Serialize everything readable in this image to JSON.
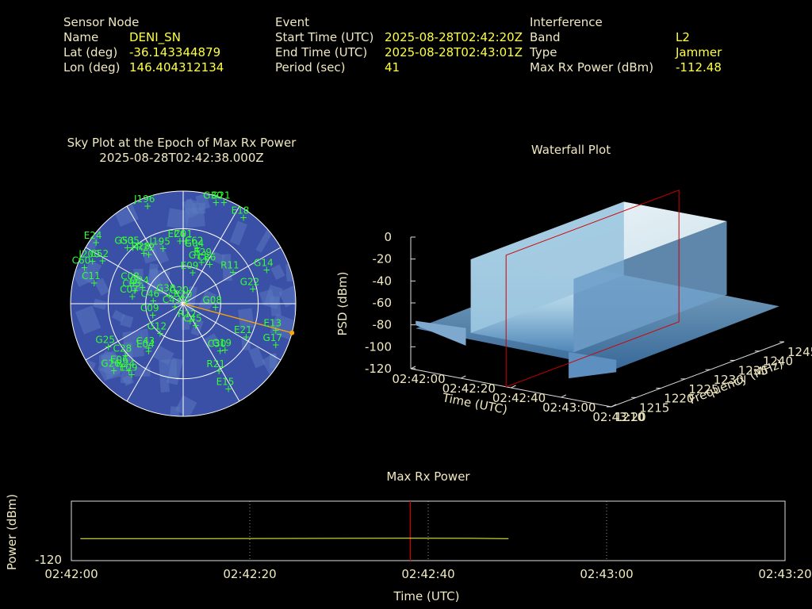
{
  "info": {
    "sensor": {
      "heading": "Sensor Node",
      "name_label": "Name",
      "name_value": "DENI_SN",
      "lat_label": "Lat (deg)",
      "lat_value": "-36.143344879",
      "lon_label": "Lon (deg)",
      "lon_value": "146.404312134"
    },
    "event": {
      "heading": "Event",
      "start_label": "Start Time (UTC)",
      "start_value": "2025-08-28T02:42:20Z",
      "end_label": "End Time (UTC)",
      "end_value": "2025-08-28T02:43:01Z",
      "period_label": "Period (sec)",
      "period_value": "41"
    },
    "interference": {
      "heading": "Interference",
      "band_label": "Band",
      "band_value": "L2",
      "type_label": "Type",
      "type_value": "Jammer",
      "power_label": "Max Rx Power (dBm)",
      "power_value": "-112.48"
    }
  },
  "colors": {
    "label": "#f0e8c0",
    "value": "#ffff40",
    "sky_disc": "#3a4fa6",
    "sky_tile": "#5a78c0",
    "satellite": "#33ff33",
    "bearing": "#ffa500",
    "marker": "#cc0000",
    "power_line": "#ffff40"
  },
  "chart_data": [
    {
      "type": "scatter",
      "name": "sky-plot",
      "title": "Sky Plot at the Epoch of Max Rx Power",
      "subtitle": "2025-08-28T02:42:38.000Z",
      "coordinates": "polar (azimuth deg clockwise from north, elevation deg 90 at center)",
      "elevation_rings": [
        30,
        60
      ],
      "interference_bearing_deg": 105,
      "satellites": [
        {
          "id": "J196",
          "az": 340,
          "el": 7
        },
        {
          "id": "G30",
          "az": 18,
          "el": 5
        },
        {
          "id": "G21",
          "az": 22,
          "el": 3
        },
        {
          "id": "E18",
          "az": 35,
          "el": 6
        },
        {
          "id": "E24",
          "az": 305,
          "el": 5
        },
        {
          "id": "J195",
          "az": 340,
          "el": 43
        },
        {
          "id": "E26",
          "az": 357,
          "el": 40
        },
        {
          "id": "C01",
          "az": 3,
          "el": 40
        },
        {
          "id": "G04",
          "az": 15,
          "el": 46
        },
        {
          "id": "C62",
          "az": 14,
          "el": 44
        },
        {
          "id": "G05",
          "az": 318,
          "el": 30
        },
        {
          "id": "G53",
          "az": 315,
          "el": 27
        },
        {
          "id": "R28",
          "az": 322,
          "el": 39
        },
        {
          "id": "R22",
          "az": 325,
          "el": 42
        },
        {
          "id": "E29",
          "az": 27,
          "el": 50
        },
        {
          "id": "G11",
          "az": 24,
          "el": 54
        },
        {
          "id": "C36",
          "az": 34,
          "el": 52
        },
        {
          "id": "E09",
          "az": 17,
          "el": 64
        },
        {
          "id": "R11",
          "az": 58,
          "el": 43
        },
        {
          "id": "G14",
          "az": 68,
          "el": 18
        },
        {
          "id": "G22",
          "az": 78,
          "el": 33
        },
        {
          "id": "J200",
          "az": 295,
          "el": 10
        },
        {
          "id": "C60",
          "az": 290,
          "el": 6
        },
        {
          "id": "C52",
          "az": 298,
          "el": 17
        },
        {
          "id": "C11",
          "az": 283,
          "el": 17
        },
        {
          "id": "G24",
          "az": 292,
          "el": 55
        },
        {
          "id": "C07",
          "az": 278,
          "el": 49
        },
        {
          "id": "G38",
          "az": 300,
          "el": 77
        },
        {
          "id": "C08",
          "az": 292,
          "el": 47
        },
        {
          "id": "C05",
          "az": 285,
          "el": 50
        },
        {
          "id": "C46",
          "az": 275,
          "el": 66
        },
        {
          "id": "G20",
          "az": 350,
          "el": 85
        },
        {
          "id": "R20",
          "az": 50,
          "el": 87
        },
        {
          "id": "G08",
          "az": 96,
          "el": 64
        },
        {
          "id": "C09",
          "az": 249,
          "el": 64
        },
        {
          "id": "C43",
          "az": 250,
          "el": 83
        },
        {
          "id": "R12",
          "az": 158,
          "el": 75
        },
        {
          "id": "C45",
          "az": 150,
          "el": 70
        },
        {
          "id": "E13",
          "az": 106,
          "el": 13
        },
        {
          "id": "E21",
          "az": 118,
          "el": 33
        },
        {
          "id": "G19",
          "az": 138,
          "el": 40
        },
        {
          "id": "C30",
          "az": 142,
          "el": 42
        },
        {
          "id": "G17",
          "az": 114,
          "el": 9
        },
        {
          "id": "G12",
          "az": 218,
          "el": 60
        },
        {
          "id": "G25",
          "az": 240,
          "el": 21
        },
        {
          "id": "E04",
          "az": 216,
          "el": 43
        },
        {
          "id": "C28",
          "az": 228,
          "el": 28
        },
        {
          "id": "C43b",
          "label": "C43",
          "az": 218,
          "el": 45
        },
        {
          "id": "E06",
          "az": 224,
          "el": 20
        },
        {
          "id": "R21",
          "az": 152,
          "el": 29
        },
        {
          "id": "E15",
          "az": 152,
          "el": 13
        },
        {
          "id": "G26",
          "az": 226,
          "el": 13
        },
        {
          "id": "R24",
          "az": 219,
          "el": 21
        },
        {
          "id": "E09b",
          "label": "E09",
          "az": 216,
          "el": 20
        }
      ]
    },
    {
      "type": "area",
      "name": "waterfall",
      "title": "Waterfall Plot",
      "xlabel": "Time (UTC)",
      "ylabel": "Frequency (MHz)",
      "zlabel": "PSD (dBm)",
      "time_ticks": [
        "02:42:00",
        "02:42:20",
        "02:42:40",
        "02:43:00",
        "02:43:20"
      ],
      "freq_ticks": [
        1210,
        1215,
        1220,
        1225,
        1230,
        1235,
        1240,
        1245
      ],
      "z_ticks": [
        0,
        -20,
        -40,
        -60,
        -80,
        -100,
        -120
      ],
      "time_range_sec": [
        0,
        80
      ],
      "freq_range": [
        1210,
        1245
      ],
      "z_range": [
        -120,
        0
      ],
      "jammer_time_sec": [
        20,
        61
      ],
      "jammer_psd_dbm": -15,
      "noise_floor_dbm": -82,
      "marker_time_sec": 38
    },
    {
      "type": "line",
      "name": "max-rx-power",
      "title": "Max Rx Power",
      "xlabel": "Time (UTC)",
      "ylabel": "Power (dBm)",
      "y_tick": -120,
      "ylim": [
        -120,
        -100
      ],
      "x_ticks": [
        "02:42:00",
        "02:42:20",
        "02:42:40",
        "02:43:00",
        "02:43:20"
      ],
      "x_range_sec": [
        0,
        80
      ],
      "marker_time_sec": 38,
      "x_sec": [
        1,
        10,
        20,
        30,
        38,
        45,
        49
      ],
      "values": [
        -112.6,
        -112.6,
        -112.55,
        -112.5,
        -112.48,
        -112.5,
        -112.6
      ]
    }
  ]
}
